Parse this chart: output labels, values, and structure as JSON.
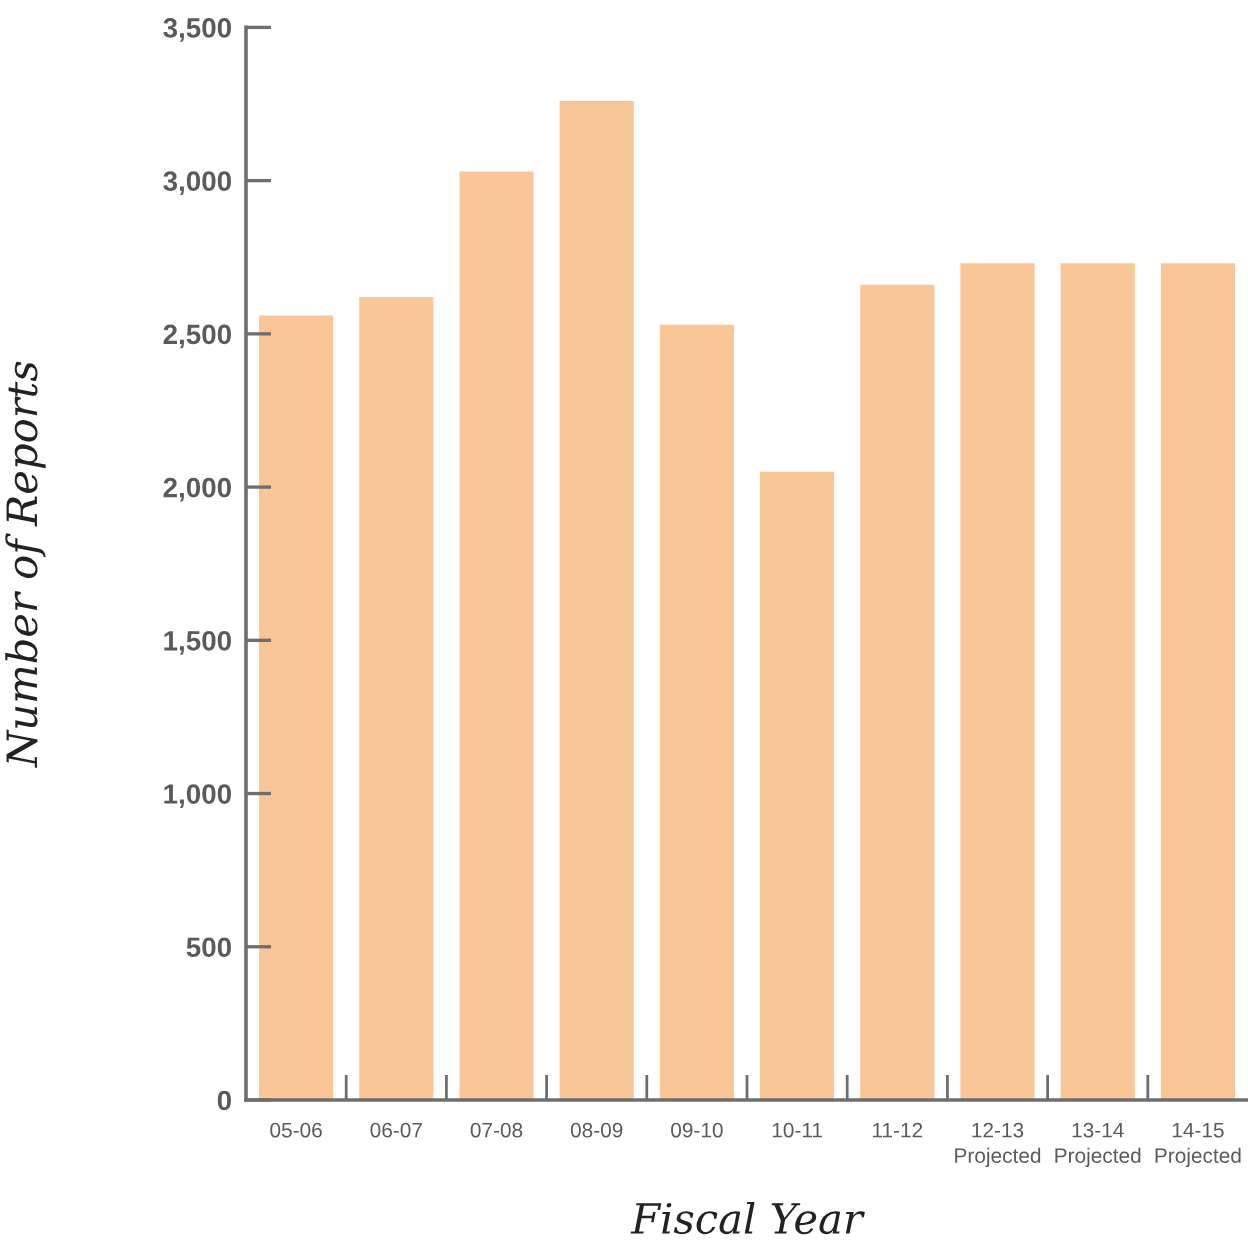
{
  "chart_data": {
    "type": "bar",
    "xlabel": "Fiscal Year",
    "ylabel": "Number of Reports",
    "categories": [
      "05-06",
      "06-07",
      "07-08",
      "08-09",
      "09-10",
      "10-11",
      "11-12",
      "12-13\nProjected",
      "13-14\nProjected",
      "14-15\nProjected"
    ],
    "values": [
      2560,
      2620,
      3030,
      3260,
      2530,
      2050,
      2660,
      2730,
      2730,
      2730
    ],
    "color": "#f9c797",
    "ylim": [
      0,
      3500
    ],
    "yticks": [
      0,
      500,
      {
        "value": 1000,
        "label": "1,000"
      },
      {
        "value": 1500,
        "label": "1,500"
      },
      {
        "value": 2000,
        "label": "2,000"
      },
      {
        "value": 2500,
        "label": "2,500"
      },
      {
        "value": 3000,
        "label": "3,000"
      },
      {
        "value": 3500,
        "label": "3,500"
      }
    ],
    "grid": false
  }
}
